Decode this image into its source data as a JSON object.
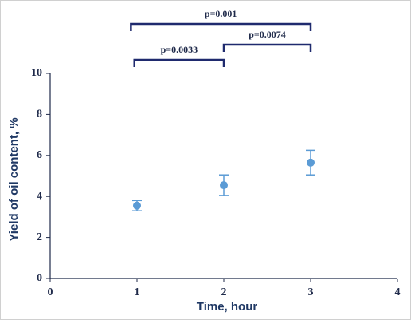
{
  "chart_data": {
    "type": "scatter",
    "x_label": "Time, hour",
    "y_label": "Yield of oil content, %",
    "x": [
      1,
      2,
      3
    ],
    "values": [
      3.55,
      4.55,
      5.65
    ],
    "errors": [
      0.25,
      0.5,
      0.6
    ],
    "color": "#5b9bd5",
    "xlim": [
      0,
      4
    ],
    "xticks": [
      0,
      1,
      2,
      3,
      4
    ],
    "ylim": [
      0,
      10
    ],
    "yticks": [
      0,
      2,
      4,
      6,
      8,
      10
    ],
    "brackets": [
      {
        "label": "p=0.001",
        "from": 0.93,
        "to": 3
      },
      {
        "label": "p=0.0033",
        "from": 0.97,
        "to": 2
      },
      {
        "label": "p=0.0074",
        "from": 2,
        "to": 3
      }
    ]
  }
}
